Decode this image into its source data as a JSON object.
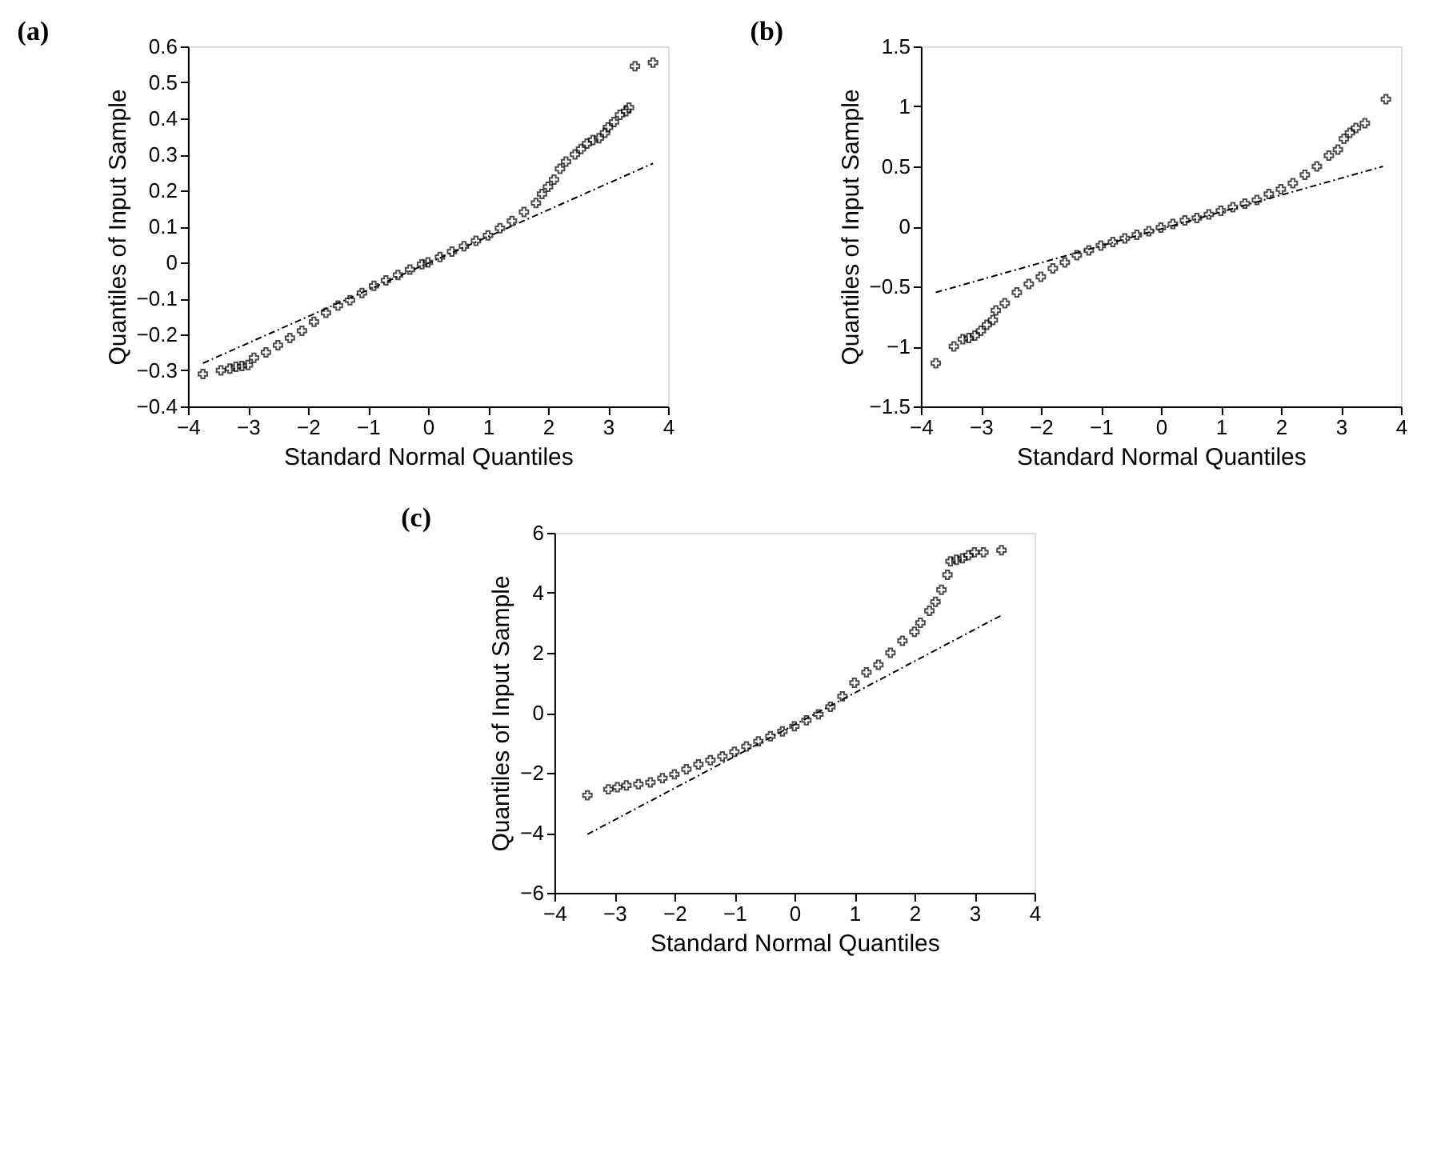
{
  "chart_data": [
    {
      "type": "scatter",
      "title": "(a)",
      "xlabel": "Standard Normal Quantiles",
      "ylabel": "Quantiles of Input Sample",
      "xlim": [
        -4,
        4
      ],
      "ylim": [
        -0.4,
        0.6
      ],
      "xticks": [
        -4,
        -3,
        -2,
        -1,
        0,
        1,
        2,
        3,
        4
      ],
      "yticks": [
        -0.4,
        -0.3,
        -0.2,
        -0.1,
        0,
        0.1,
        0.2,
        0.3,
        0.4,
        0.5,
        0.6
      ],
      "grid": false,
      "series": [
        {
          "marker": "cross",
          "color": "#000000",
          "x": [
            -3.75,
            -3.45,
            -3.3,
            -3.2,
            -3.1,
            -3.0,
            -2.9,
            -2.7,
            -2.5,
            -2.3,
            -2.1,
            -1.9,
            -1.7,
            -1.5,
            -1.3,
            -1.1,
            -0.9,
            -0.7,
            -0.5,
            -0.3,
            -0.1,
            0,
            0.2,
            0.4,
            0.6,
            0.8,
            1.0,
            1.2,
            1.4,
            1.6,
            1.8,
            1.9,
            2.0,
            2.1,
            2.2,
            2.3,
            2.45,
            2.55,
            2.65,
            2.75,
            2.85,
            2.95,
            3.0,
            3.1,
            3.2,
            3.3,
            3.35,
            3.45,
            3.75
          ],
          "values": [
            -0.31,
            -0.3,
            -0.295,
            -0.29,
            -0.288,
            -0.285,
            -0.265,
            -0.25,
            -0.23,
            -0.21,
            -0.19,
            -0.165,
            -0.14,
            -0.12,
            -0.105,
            -0.085,
            -0.065,
            -0.05,
            -0.035,
            -0.02,
            -0.005,
            0,
            0.015,
            0.03,
            0.045,
            0.06,
            0.075,
            0.095,
            0.115,
            0.14,
            0.165,
            0.19,
            0.21,
            0.23,
            0.26,
            0.28,
            0.3,
            0.315,
            0.33,
            0.34,
            0.345,
            0.36,
            0.375,
            0.39,
            0.41,
            0.42,
            0.43,
            0.545,
            0.555
          ]
        },
        {
          "type": "line",
          "line_style": "dashed",
          "color": "#000000",
          "x": [
            -3.75,
            3.75
          ],
          "values": [
            -0.28,
            0.275
          ]
        }
      ]
    },
    {
      "type": "scatter",
      "title": "(b)",
      "xlabel": "Standard Normal Quantiles",
      "ylabel": "Quantiles of Input Sample",
      "xlim": [
        -4,
        4
      ],
      "ylim": [
        -1.5,
        1.5
      ],
      "xticks": [
        -4,
        -3,
        -2,
        -1,
        0,
        1,
        2,
        3,
        4
      ],
      "yticks": [
        -1.5,
        -1,
        -0.5,
        0,
        0.5,
        1,
        1.5
      ],
      "grid": false,
      "series": [
        {
          "marker": "cross",
          "color": "#000000",
          "x": [
            -3.75,
            -3.45,
            -3.3,
            -3.2,
            -3.1,
            -3.0,
            -2.9,
            -2.8,
            -2.75,
            -2.6,
            -2.4,
            -2.2,
            -2.0,
            -1.8,
            -1.6,
            -1.4,
            -1.2,
            -1.0,
            -0.8,
            -0.6,
            -0.4,
            -0.2,
            0,
            0.2,
            0.4,
            0.6,
            0.8,
            1.0,
            1.2,
            1.4,
            1.6,
            1.8,
            2.0,
            2.2,
            2.4,
            2.6,
            2.8,
            2.95,
            3.05,
            3.15,
            3.25,
            3.4,
            3.75
          ],
          "values": [
            -1.14,
            -1.0,
            -0.94,
            -0.93,
            -0.91,
            -0.87,
            -0.82,
            -0.78,
            -0.7,
            -0.64,
            -0.55,
            -0.48,
            -0.42,
            -0.35,
            -0.3,
            -0.24,
            -0.2,
            -0.16,
            -0.13,
            -0.1,
            -0.07,
            -0.04,
            -0.01,
            0.02,
            0.05,
            0.07,
            0.1,
            0.13,
            0.16,
            0.19,
            0.22,
            0.27,
            0.31,
            0.36,
            0.43,
            0.5,
            0.59,
            0.64,
            0.73,
            0.78,
            0.82,
            0.86,
            1.06
          ]
        },
        {
          "type": "line",
          "line_style": "dashed",
          "color": "#000000",
          "x": [
            -3.75,
            3.7
          ],
          "values": [
            -0.55,
            0.5
          ]
        }
      ]
    },
    {
      "type": "scatter",
      "title": "(c)",
      "xlabel": "Standard Normal Quantiles",
      "ylabel": "Quantiles of Input Sample",
      "xlim": [
        -4,
        4
      ],
      "ylim": [
        -6,
        6
      ],
      "xticks": [
        -4,
        -3,
        -2,
        -1,
        0,
        1,
        2,
        3,
        4
      ],
      "yticks": [
        -6,
        -4,
        -2,
        0,
        2,
        4,
        6
      ],
      "grid": false,
      "series": [
        {
          "marker": "cross",
          "color": "#000000",
          "x": [
            -3.45,
            -3.1,
            -2.95,
            -2.8,
            -2.6,
            -2.4,
            -2.2,
            -2.0,
            -1.8,
            -1.6,
            -1.4,
            -1.2,
            -1.0,
            -0.8,
            -0.6,
            -0.4,
            -0.2,
            0,
            0.2,
            0.4,
            0.6,
            0.8,
            1.0,
            1.2,
            1.4,
            1.6,
            1.8,
            2.0,
            2.1,
            2.25,
            2.35,
            2.45,
            2.55,
            2.6,
            2.7,
            2.8,
            2.9,
            3.0,
            3.15,
            3.45
          ],
          "values": [
            -2.75,
            -2.55,
            -2.48,
            -2.42,
            -2.38,
            -2.32,
            -2.18,
            -2.05,
            -1.88,
            -1.72,
            -1.58,
            -1.45,
            -1.3,
            -1.12,
            -0.95,
            -0.78,
            -0.62,
            -0.45,
            -0.25,
            -0.05,
            0.2,
            0.55,
            1.0,
            1.35,
            1.6,
            2.0,
            2.4,
            2.7,
            3.0,
            3.4,
            3.7,
            4.1,
            4.6,
            5.05,
            5.1,
            5.15,
            5.25,
            5.35,
            5.35,
            5.42
          ]
        },
        {
          "type": "line",
          "line_style": "dashed",
          "color": "#000000",
          "x": [
            -3.45,
            3.45
          ],
          "values": [
            -4.05,
            3.25
          ]
        }
      ]
    }
  ]
}
